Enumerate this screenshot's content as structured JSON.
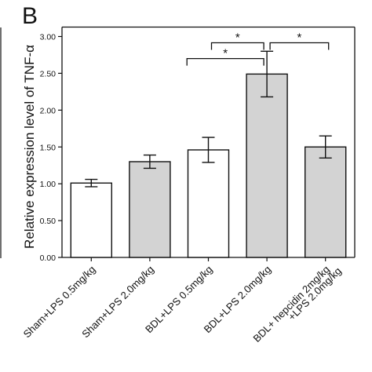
{
  "panel_label": "B",
  "chart_data": {
    "type": "bar",
    "title": "",
    "ylabel": "Relative expression level of TNF-α",
    "ylim": [
      0,
      3.0
    ],
    "yticks": [
      "0.00",
      "0.50",
      "1.00",
      "1.50",
      "2.00",
      "2.50",
      "3.00"
    ],
    "ytick_values": [
      0,
      0.5,
      1.0,
      1.5,
      2.0,
      2.5,
      3.0
    ],
    "categories": [
      [
        "Sham+LPS 0.5mg/kg"
      ],
      [
        "Sham+LPS 2.0mg/kg"
      ],
      [
        "BDL+LPS 0.5mg/kg"
      ],
      [
        "BDL+LPS 2.0mg/kg"
      ],
      [
        "BDL+ hepcidin 2mg/kg",
        "+LPS 2.0mg/kg"
      ]
    ],
    "values": [
      1.01,
      1.3,
      1.46,
      2.49,
      1.5
    ],
    "errors": [
      0.05,
      0.09,
      0.17,
      0.31,
      0.15
    ],
    "fills": [
      "#ffffff",
      "#d3d3d3",
      "#ffffff",
      "#d3d3d3",
      "#d3d3d3"
    ],
    "significance": [
      {
        "from": 2,
        "to": 3,
        "label": "*",
        "level": 2.62
      },
      {
        "from": 3,
        "to": 4,
        "label": "*",
        "level": 2.96
      },
      {
        "from": 1,
        "to": 3,
        "label": "*",
        "level": 2.62
      }
    ],
    "grid": false
  }
}
